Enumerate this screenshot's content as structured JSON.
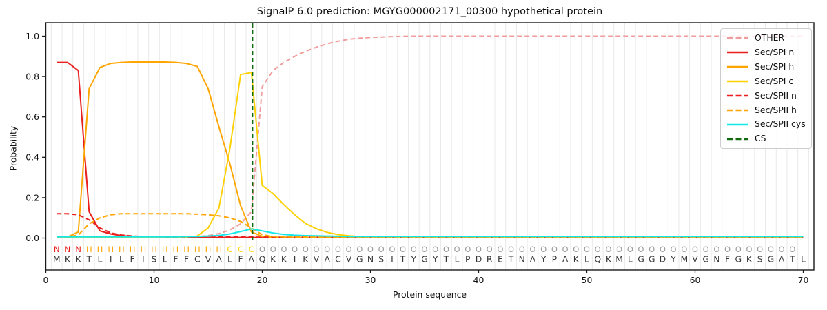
{
  "chart_data": {
    "type": "line",
    "title": "SignalP 6.0 prediction: MGYG000002171_00300 hypothetical protein",
    "xlabel": "Protein sequence",
    "ylabel": "Probability",
    "xlim": [
      0,
      71
    ],
    "ylim": [
      -0.16,
      1.07
    ],
    "xticks": [
      0,
      10,
      20,
      30,
      40,
      50,
      60,
      70
    ],
    "ytick_labels": [
      "0.0",
      "0.2",
      "0.4",
      "0.6",
      "0.8",
      "1.0"
    ],
    "ytick_values": [
      0.0,
      0.2,
      0.4,
      0.6,
      0.8,
      1.0
    ],
    "grid": "vertical light gridlines at each residue boundary",
    "legend_position": "upper right",
    "x_start": 1,
    "series": [
      {
        "name": "OTHER",
        "color": "#f19c9c",
        "style": "dashed",
        "values": [
          0.005,
          0.005,
          0.005,
          0.005,
          0.005,
          0.005,
          0.005,
          0.005,
          0.005,
          0.005,
          0.005,
          0.005,
          0.006,
          0.008,
          0.012,
          0.022,
          0.04,
          0.07,
          0.13,
          0.75,
          0.83,
          0.87,
          0.9,
          0.925,
          0.945,
          0.962,
          0.975,
          0.985,
          0.99,
          0.994,
          0.996,
          0.998,
          0.999,
          1.0,
          1.0,
          1.0,
          1.0,
          1.0,
          1.0,
          1.0,
          1.0,
          1.0,
          1.0,
          1.0,
          1.0,
          1.0,
          1.0,
          1.0,
          1.0,
          1.0,
          1.0,
          1.0,
          1.0,
          1.0,
          1.0,
          1.0,
          1.0,
          1.0,
          1.0,
          1.0,
          1.0,
          1.0,
          1.0,
          1.0,
          1.0,
          1.0,
          1.0,
          1.0,
          1.0,
          1.0
        ]
      },
      {
        "name": "Sec/SPI n",
        "color": "#e9201d",
        "style": "solid",
        "values": [
          0.87,
          0.87,
          0.83,
          0.13,
          0.035,
          0.02,
          0.012,
          0.008,
          0.006,
          0.005,
          0.004,
          0.003,
          0.003,
          0.003,
          0.003,
          0.003,
          0.003,
          0.003,
          0.003,
          0.003,
          0.003,
          0.003,
          0.003,
          0.003,
          0.003,
          0.003,
          0.003,
          0.003,
          0.003,
          0.003,
          0.003,
          0.003,
          0.003,
          0.003,
          0.003,
          0.003,
          0.003,
          0.003,
          0.003,
          0.003,
          0.003,
          0.003,
          0.003,
          0.003,
          0.003,
          0.003,
          0.003,
          0.003,
          0.003,
          0.003,
          0.003,
          0.003,
          0.003,
          0.003,
          0.003,
          0.003,
          0.003,
          0.003,
          0.003,
          0.003,
          0.003,
          0.003,
          0.003,
          0.003,
          0.003,
          0.003,
          0.003,
          0.003,
          0.003,
          0.003
        ]
      },
      {
        "name": "Sec/SPI h",
        "color": "#ffa500",
        "style": "solid",
        "values": [
          0.004,
          0.005,
          0.03,
          0.74,
          0.845,
          0.865,
          0.87,
          0.872,
          0.872,
          0.872,
          0.872,
          0.87,
          0.865,
          0.85,
          0.74,
          0.55,
          0.37,
          0.16,
          0.03,
          0.008,
          0.004,
          0.003,
          0.003,
          0.003,
          0.003,
          0.003,
          0.003,
          0.003,
          0.003,
          0.003,
          0.003,
          0.003,
          0.003,
          0.003,
          0.003,
          0.003,
          0.003,
          0.003,
          0.003,
          0.003,
          0.003,
          0.003,
          0.003,
          0.003,
          0.003,
          0.003,
          0.003,
          0.003,
          0.003,
          0.003,
          0.003,
          0.003,
          0.003,
          0.003,
          0.003,
          0.003,
          0.003,
          0.003,
          0.003,
          0.003,
          0.003,
          0.003,
          0.003,
          0.003,
          0.003,
          0.003,
          0.003,
          0.003,
          0.003,
          0.003
        ]
      },
      {
        "name": "Sec/SPI c",
        "color": "#ffd105",
        "style": "solid",
        "values": [
          0.003,
          0.003,
          0.003,
          0.003,
          0.003,
          0.003,
          0.003,
          0.003,
          0.003,
          0.003,
          0.004,
          0.004,
          0.005,
          0.01,
          0.05,
          0.15,
          0.44,
          0.81,
          0.82,
          0.26,
          0.22,
          0.165,
          0.115,
          0.072,
          0.046,
          0.028,
          0.017,
          0.011,
          0.008,
          0.006,
          0.005,
          0.005,
          0.004,
          0.004,
          0.004,
          0.004,
          0.004,
          0.004,
          0.004,
          0.004,
          0.004,
          0.004,
          0.004,
          0.004,
          0.004,
          0.004,
          0.004,
          0.004,
          0.004,
          0.004,
          0.004,
          0.004,
          0.004,
          0.004,
          0.004,
          0.004,
          0.004,
          0.004,
          0.004,
          0.004,
          0.004,
          0.004,
          0.004,
          0.004,
          0.004,
          0.004,
          0.004,
          0.004,
          0.004,
          0.004
        ]
      },
      {
        "name": "Sec/SPII n",
        "color": "#e9201d",
        "style": "dashed",
        "values": [
          0.12,
          0.12,
          0.115,
          0.09,
          0.05,
          0.025,
          0.015,
          0.01,
          0.008,
          0.007,
          0.006,
          0.006,
          0.006,
          0.006,
          0.006,
          0.006,
          0.005,
          0.005,
          0.005,
          0.004,
          0.004,
          0.004,
          0.004,
          0.004,
          0.004,
          0.004,
          0.004,
          0.004,
          0.004,
          0.004,
          0.004,
          0.004,
          0.004,
          0.004,
          0.004,
          0.004,
          0.004,
          0.004,
          0.004,
          0.004,
          0.004,
          0.004,
          0.004,
          0.004,
          0.004,
          0.004,
          0.004,
          0.004,
          0.004,
          0.004,
          0.004,
          0.004,
          0.004,
          0.004,
          0.004,
          0.004,
          0.004,
          0.004,
          0.004,
          0.004,
          0.004,
          0.004,
          0.004,
          0.004,
          0.004,
          0.004,
          0.004,
          0.004,
          0.004,
          0.004
        ]
      },
      {
        "name": "Sec/SPII h",
        "color": "#ffa500",
        "style": "dashed",
        "values": [
          0.004,
          0.005,
          0.015,
          0.07,
          0.1,
          0.115,
          0.12,
          0.12,
          0.12,
          0.12,
          0.12,
          0.12,
          0.12,
          0.118,
          0.115,
          0.11,
          0.1,
          0.082,
          0.05,
          0.016,
          0.008,
          0.006,
          0.005,
          0.005,
          0.005,
          0.005,
          0.005,
          0.005,
          0.005,
          0.005,
          0.005,
          0.005,
          0.005,
          0.005,
          0.005,
          0.005,
          0.005,
          0.005,
          0.005,
          0.005,
          0.005,
          0.005,
          0.005,
          0.005,
          0.005,
          0.005,
          0.005,
          0.005,
          0.005,
          0.005,
          0.005,
          0.005,
          0.005,
          0.005,
          0.005,
          0.005,
          0.005,
          0.005,
          0.005,
          0.005,
          0.005,
          0.005,
          0.005,
          0.005,
          0.005,
          0.005,
          0.005,
          0.005,
          0.005,
          0.005
        ]
      },
      {
        "name": "Sec/SPII cys",
        "color": "#12e8e8",
        "style": "solid",
        "values": [
          0.006,
          0.006,
          0.006,
          0.006,
          0.006,
          0.006,
          0.006,
          0.006,
          0.006,
          0.006,
          0.006,
          0.006,
          0.007,
          0.008,
          0.01,
          0.013,
          0.02,
          0.032,
          0.045,
          0.035,
          0.025,
          0.018,
          0.014,
          0.012,
          0.011,
          0.01,
          0.009,
          0.008,
          0.008,
          0.008,
          0.008,
          0.008,
          0.008,
          0.008,
          0.008,
          0.008,
          0.008,
          0.008,
          0.008,
          0.008,
          0.008,
          0.008,
          0.008,
          0.008,
          0.008,
          0.008,
          0.008,
          0.008,
          0.008,
          0.008,
          0.008,
          0.008,
          0.008,
          0.008,
          0.008,
          0.008,
          0.008,
          0.008,
          0.008,
          0.008,
          0.008,
          0.008,
          0.008,
          0.008,
          0.008,
          0.008,
          0.008,
          0.008,
          0.008,
          0.008
        ]
      }
    ],
    "cs_marker": {
      "name": "CS",
      "color": "#0e6b0e",
      "style": "dashed",
      "position": 19.1
    },
    "sequence": {
      "residues": "MKKTLILFISLFFCVALFAQKKIKVACVGNSITYGYTLPDRETNAYPAKLQKMLGGDYMVGNFGKSGATL",
      "annotations": "NNNHHHHHHHHHHHHHCCCOOOOOOOOOOOOOOOOOOOOOOOOOOOOOOOOOOOOOOOOOOOOOOOOOO",
      "annotation_colors": {
        "N": "#e9201d",
        "H": "#ffa500",
        "C": "#ffd105",
        "O": "#9b9b9b"
      },
      "residue_color": "#363636"
    },
    "axis_color": "#1a1a1a",
    "gridline_color": "#e9e9e9"
  }
}
